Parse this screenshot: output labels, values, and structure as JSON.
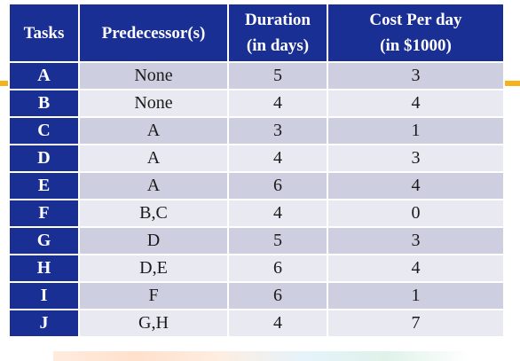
{
  "table": {
    "headers": {
      "tasks": "Tasks",
      "predecessors": "Predecessor(s)",
      "duration_line1": "Duration",
      "duration_line2": "(in days)",
      "cost_line1": "Cost Per day",
      "cost_line2": "(in $1000)"
    },
    "rows": [
      {
        "task": "A",
        "predecessors": "None",
        "duration": "5",
        "cost": "3"
      },
      {
        "task": "B",
        "predecessors": "None",
        "duration": "4",
        "cost": "4"
      },
      {
        "task": "C",
        "predecessors": "A",
        "duration": "3",
        "cost": "1"
      },
      {
        "task": "D",
        "predecessors": "A",
        "duration": "4",
        "cost": "3"
      },
      {
        "task": "E",
        "predecessors": "A",
        "duration": "6",
        "cost": "4"
      },
      {
        "task": "F",
        "predecessors": "B,C",
        "duration": "4",
        "cost": "0"
      },
      {
        "task": "G",
        "predecessors": "D",
        "duration": "5",
        "cost": "3"
      },
      {
        "task": "H",
        "predecessors": "D,E",
        "duration": "6",
        "cost": "4"
      },
      {
        "task": "I",
        "predecessors": "F",
        "duration": "6",
        "cost": "1"
      },
      {
        "task": "J",
        "predecessors": "G,H",
        "duration": "4",
        "cost": "7"
      }
    ]
  },
  "colors": {
    "header_bg": "#1a2f94",
    "row_dark": "#cdcfe0",
    "row_light": "#e8e9f1",
    "accent": "#f5b21a"
  }
}
